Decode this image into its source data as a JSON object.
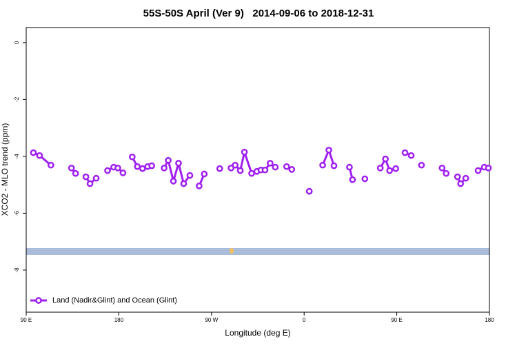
{
  "chart_data": {
    "type": "line",
    "title": "55S-50S April (Ver 9)   2014-09-06 to 2018-12-31",
    "xlabel": "Longitude (deg E)",
    "ylabel": "XCO2 - MLO trend (ppm)",
    "x": [
      97,
      103,
      114,
      null,
      134,
      138,
      null,
      148,
      152,
      158,
      null,
      169,
      175,
      179,
      184,
      null,
      193,
      198,
      203,
      208,
      212,
      null,
      224,
      228,
      233,
      238,
      243,
      249,
      null,
      258,
      263,
      null,
      278,
      null,
      289,
      293,
      298,
      302,
      309,
      314,
      318,
      322,
      327,
      332,
      null,
      343,
      348,
      null,
      365,
      null,
      378,
      384,
      389,
      null,
      404,
      407,
      null,
      419,
      null,
      434,
      439,
      443,
      449,
      null,
      458,
      464,
      null,
      474,
      null,
      494,
      498,
      null,
      509,
      512,
      517,
      null,
      529,
      535,
      539
    ],
    "xlim": [
      90,
      540
    ],
    "xticks": [
      {
        "value": 90,
        "label": "90 E"
      },
      180,
      {
        "value": 270,
        "label": "90 W"
      },
      {
        "value": 360,
        "label": "0"
      },
      {
        "value": 450,
        "label": "90 E"
      },
      {
        "value": 540,
        "label": "180"
      }
    ],
    "ylim": [
      -9.48,
      0.53
    ],
    "yticks": [
      0,
      -2,
      -4,
      -6,
      -8
    ],
    "series": [
      {
        "name": "Land (Nadir&Glint) and Ocean (Glint)",
        "color": "#a020f0",
        "values": [
          -3.87,
          -3.97,
          -4.31,
          null,
          -4.41,
          -4.6,
          null,
          -4.72,
          -4.96,
          -4.77,
          null,
          -4.5,
          -4.38,
          -4.41,
          -4.58,
          null,
          -4.02,
          -4.36,
          -4.43,
          -4.36,
          -4.33,
          null,
          -4.41,
          -4.14,
          -4.87,
          -4.24,
          -4.96,
          -4.67,
          null,
          -5.04,
          -4.62,
          null,
          -4.43,
          null,
          -4.41,
          -4.31,
          -4.5,
          -3.85,
          -4.6,
          -4.53,
          -4.48,
          -4.48,
          -4.24,
          -4.38,
          null,
          -4.36,
          -4.46,
          null,
          -5.23,
          null,
          -4.31,
          -3.78,
          -4.33,
          null,
          -4.38,
          -4.82,
          null,
          -4.79,
          null,
          -4.41,
          -4.09,
          -4.5,
          -4.43,
          null,
          -3.87,
          -3.97,
          null,
          -4.31,
          null,
          -4.41,
          -4.6,
          null,
          -4.72,
          -4.96,
          -4.77,
          null,
          -4.5,
          -4.38,
          -4.41
        ]
      }
    ],
    "legend": "bottom-left"
  }
}
